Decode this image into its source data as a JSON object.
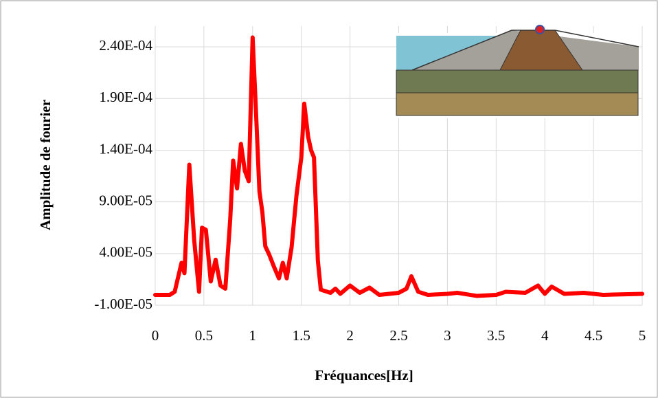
{
  "chart_data": {
    "type": "line",
    "x_label": "Fréquances[Hz]",
    "y_label": "Amplitude de fourier",
    "xlim": [
      0,
      5
    ],
    "xticks": [
      0,
      0.5,
      1,
      1.5,
      2,
      2.5,
      3,
      3.5,
      4,
      4.5,
      5
    ],
    "ylim": [
      -1e-05,
      0.00026
    ],
    "yticks": [
      {
        "value": -1e-05,
        "label": "-1.00E-05"
      },
      {
        "value": 4e-05,
        "label": "4.00E-05"
      },
      {
        "value": 9e-05,
        "label": "9.00E-05"
      },
      {
        "value": 0.00014,
        "label": "1.40E-04"
      },
      {
        "value": 0.00019,
        "label": "1.90E-04"
      },
      {
        "value": 0.00024,
        "label": "2.40E-04"
      }
    ],
    "grid": true,
    "series": [
      {
        "color": "#ff0000",
        "x": [
          0,
          0.15,
          0.2,
          0.27,
          0.3,
          0.35,
          0.4,
          0.45,
          0.48,
          0.52,
          0.57,
          0.62,
          0.67,
          0.72,
          0.77,
          0.8,
          0.84,
          0.88,
          0.92,
          0.96,
          1.0,
          1.03,
          1.07,
          1.1,
          1.13,
          1.17,
          1.22,
          1.27,
          1.31,
          1.35,
          1.4,
          1.45,
          1.5,
          1.53,
          1.57,
          1.6,
          1.63,
          1.67,
          1.7,
          1.8,
          1.85,
          1.9,
          2.0,
          2.1,
          2.2,
          2.3,
          2.5,
          2.58,
          2.63,
          2.7,
          2.8,
          3.0,
          3.1,
          3.3,
          3.5,
          3.6,
          3.8,
          3.93,
          4.0,
          4.07,
          4.2,
          4.4,
          4.6,
          5.0
        ],
        "values": [
          0,
          0,
          3e-06,
          3.1e-05,
          2.1e-05,
          0.000126,
          5.3e-05,
          3e-06,
          6.5e-05,
          6.3e-05,
          1.3e-05,
          3.4e-05,
          9e-06,
          6e-06,
          7.3e-05,
          0.00013,
          0.000103,
          0.000146,
          0.00012,
          0.00011,
          0.000249,
          0.000187,
          0.0001,
          8e-05,
          4.7e-05,
          3.9e-05,
          2.7e-05,
          1.6e-05,
          3.1e-05,
          1.6e-05,
          4.6e-05,
          9.6e-05,
          0.000133,
          0.000185,
          0.000153,
          0.00014,
          0.000133,
          3.3e-05,
          5e-06,
          2e-06,
          6e-06,
          1e-06,
          9e-06,
          2e-06,
          7e-06,
          0,
          2e-06,
          6e-06,
          1.8e-05,
          3e-06,
          0,
          1e-06,
          2e-06,
          -1e-06,
          0,
          3e-06,
          2e-06,
          9e-06,
          1e-06,
          8e-06,
          1e-06,
          2e-06,
          0,
          1e-06
        ]
      }
    ]
  }
}
